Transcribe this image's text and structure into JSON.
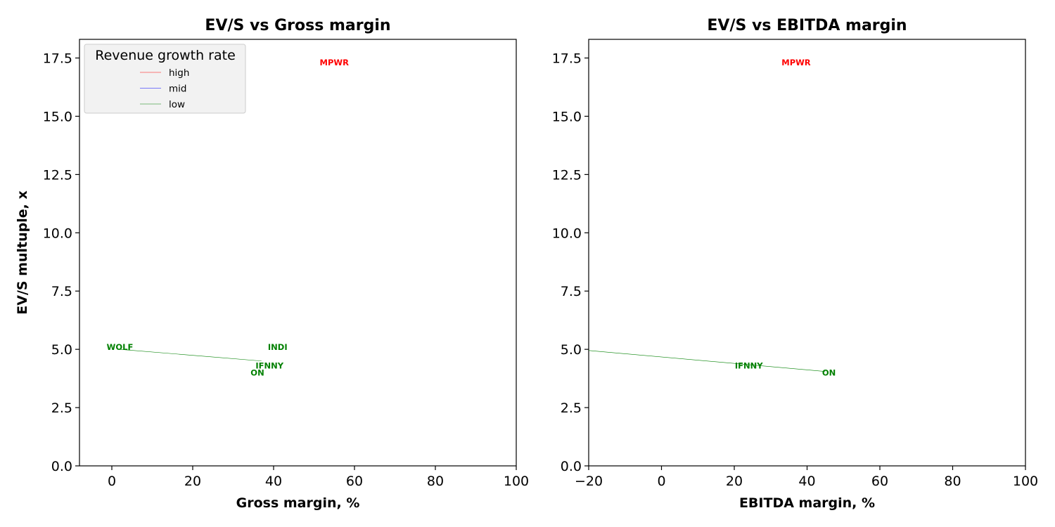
{
  "chart_data": [
    {
      "type": "scatter",
      "title": "EV/S vs Gross margin",
      "xlabel": "Gross margin, %",
      "ylabel": "EV/S multuple, x",
      "xlim": [
        -8,
        100
      ],
      "ylim": [
        0,
        18.3
      ],
      "xticks": [
        0,
        20,
        40,
        60,
        80,
        100
      ],
      "yticks": [
        0,
        2.5,
        5,
        7.5,
        10,
        12.5,
        15,
        17.5
      ],
      "grid": false,
      "legend": {
        "title": "Revenue growth rate",
        "placement": "upper-left",
        "entries": [
          {
            "name": "high",
            "color": "#ff0000"
          },
          {
            "name": "mid",
            "color": "#0000ff"
          },
          {
            "name": "low",
            "color": "#008000"
          }
        ]
      },
      "points": [
        {
          "label": "MPWR",
          "x": 55,
          "y": 17.3,
          "group": "high"
        },
        {
          "label": "WOLF",
          "x": 2,
          "y": 5.1,
          "group": "low"
        },
        {
          "label": "INDI",
          "x": 41,
          "y": 5.1,
          "group": "low"
        },
        {
          "label": "IFNNY",
          "x": 39,
          "y": 4.3,
          "group": "low"
        },
        {
          "label": "ON",
          "x": 36,
          "y": 4.0,
          "group": "low"
        }
      ],
      "trendlines": [
        {
          "group": "low",
          "x": [
            2,
            37
          ],
          "y": [
            5.0,
            4.5
          ]
        }
      ]
    },
    {
      "type": "scatter",
      "title": "EV/S vs EBITDA margin",
      "xlabel": "EBITDA margin, %",
      "ylabel": "",
      "xlim": [
        -20,
        100
      ],
      "ylim": [
        0,
        18.3
      ],
      "xticks": [
        -20,
        0,
        20,
        40,
        60,
        80,
        100
      ],
      "yticks": [
        0,
        2.5,
        5,
        7.5,
        10,
        12.5,
        15,
        17.5
      ],
      "grid": false,
      "points": [
        {
          "label": "MPWR",
          "x": 37,
          "y": 17.3,
          "group": "high"
        },
        {
          "label": "IFNNY",
          "x": 24,
          "y": 4.3,
          "group": "low"
        },
        {
          "label": "ON",
          "x": 46,
          "y": 4.0,
          "group": "low"
        }
      ],
      "trendlines": [
        {
          "group": "low",
          "x": [
            -20,
            45
          ],
          "y": [
            4.95,
            4.05
          ]
        }
      ]
    }
  ]
}
